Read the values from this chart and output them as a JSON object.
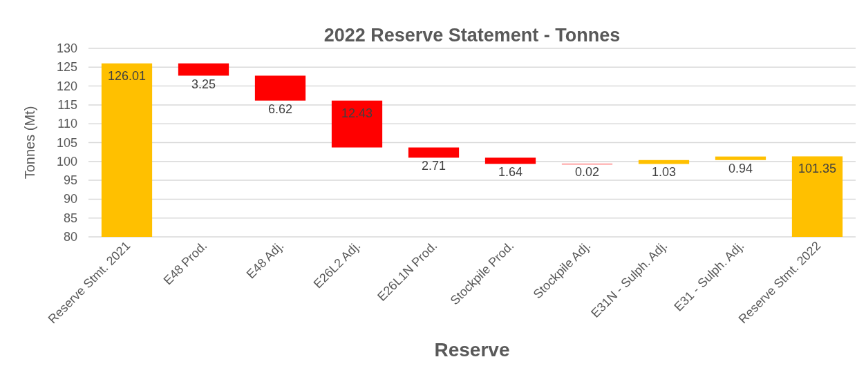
{
  "chart_data": {
    "type": "bar",
    "title": "2022 Reserve Statement - Tonnes",
    "xlabel": "Reserve",
    "ylabel": "Tonnes (Mt)",
    "categories": [
      "Reserve Stmt. 2021",
      "E48 Prod.",
      "E48 Adj.",
      "E26L2 Adj.",
      "E26L1N Prod.",
      "Stockpile Prod.",
      "Stockpile Adj.",
      "E31N - Sulph. Adj.",
      "E31 - Sulph. Adj.",
      "Reserve Stmt. 2022"
    ],
    "base": [
      80,
      122.76,
      116.14,
      103.71,
      101.0,
      99.36,
      99.34,
      99.34,
      100.37,
      80
    ],
    "values": [
      46.01,
      3.25,
      6.62,
      12.43,
      2.71,
      1.64,
      0.02,
      1.03,
      0.94,
      21.35
    ],
    "colors": [
      "#ffc000",
      "#ff0000",
      "#ff0000",
      "#ff0000",
      "#ff0000",
      "#ff0000",
      "#ff0000",
      "#ffc000",
      "#ffc000",
      "#ffc000"
    ],
    "value_labels": [
      "126.01",
      "3.25",
      "6.62",
      "12.43",
      "2.71",
      "1.64",
      "0.02",
      "1.03",
      "0.94",
      "101.35"
    ],
    "ylim": [
      80,
      130
    ],
    "yticks": [
      80,
      85,
      90,
      95,
      100,
      105,
      110,
      115,
      120,
      125,
      130
    ],
    "grid": "y"
  }
}
